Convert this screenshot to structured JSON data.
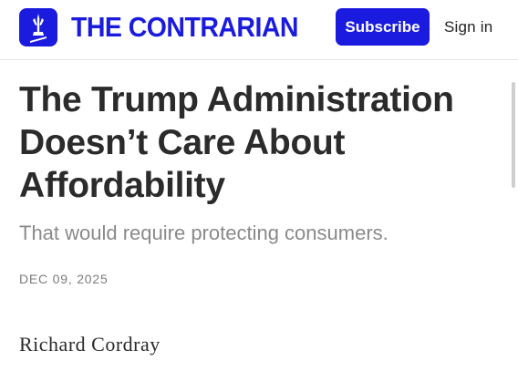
{
  "header": {
    "logo_icon": "monument-icon",
    "site_title": "THE CONTRARIAN",
    "subscribe_label": "Subscribe",
    "signin_label": "Sign in",
    "brand_color": "#1b1be0"
  },
  "article": {
    "title": "The Trump Administration Doesn’t Care About Affordability",
    "subtitle": "That would require protecting consumers.",
    "date": "DEC 09, 2025",
    "author": "Richard Cordray"
  }
}
